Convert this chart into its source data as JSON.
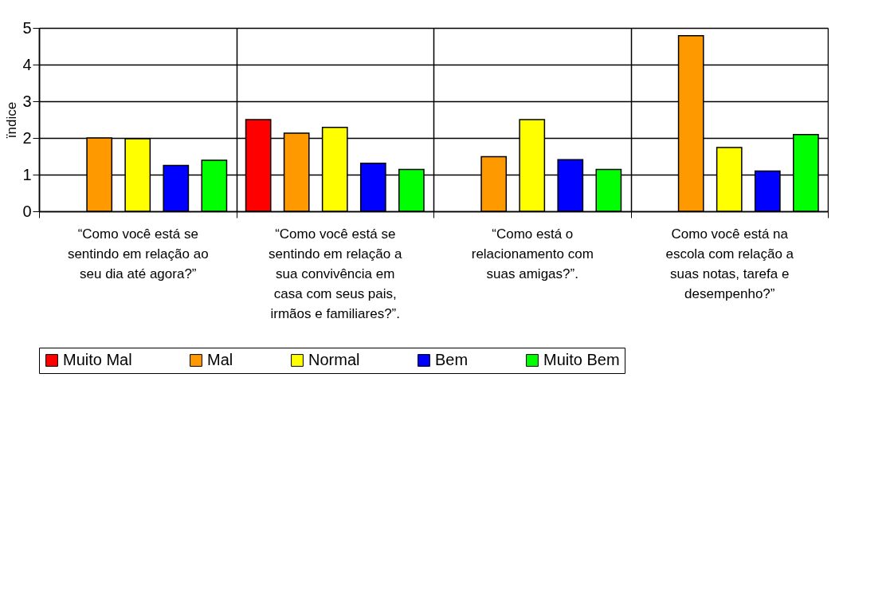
{
  "chart_data": {
    "type": "bar",
    "ylabel": "ïndice",
    "categories": [
      "“Como você está se sentindo em relação ao seu dia até agora?”",
      "“Como você está se sentindo em relação a sua convivência em casa com seus pais, irmãos e familiares?”.",
      "“Como está o relacionamento com suas amigas?”.",
      "Como você está na escola com relação a suas notas, tarefa e desempenho?”"
    ],
    "series": [
      {
        "name": "Muito Mal",
        "color": "#ff0000",
        "values": [
          null,
          2.5,
          null,
          null
        ]
      },
      {
        "name": "Mal",
        "color": "#ff9900",
        "values": [
          2.0,
          2.13,
          1.49,
          4.79
        ]
      },
      {
        "name": "Normal",
        "color": "#ffff00",
        "values": [
          1.98,
          2.29,
          2.5,
          1.74
        ]
      },
      {
        "name": "Bem",
        "color": "#0000ff",
        "values": [
          1.25,
          1.31,
          1.41,
          1.1
        ]
      },
      {
        "name": "Muito Bem",
        "color": "#00ff00",
        "values": [
          1.39,
          1.14,
          1.14,
          2.09
        ]
      }
    ],
    "ylim": [
      0,
      5
    ],
    "yticks": [
      0,
      1,
      2,
      3,
      4,
      5
    ],
    "grid": true,
    "legend": "bottom"
  }
}
